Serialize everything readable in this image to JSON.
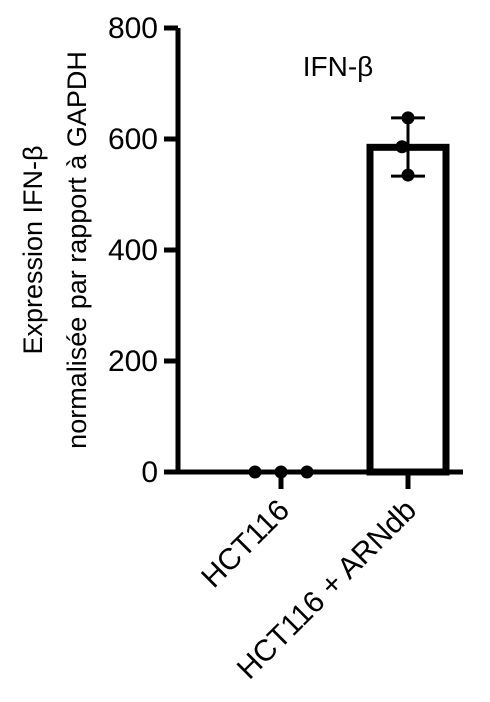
{
  "chart_data": {
    "type": "bar",
    "title": "IFN-β",
    "ylabel_lines": [
      "Expression IFN-β",
      "normalisée par rapport à GAPDH"
    ],
    "xlabel": "",
    "categories": [
      "HCT116",
      "HCT116 + ARNdb"
    ],
    "values": [
      0,
      585
    ],
    "errors": [
      {
        "low": 0,
        "high": 0
      },
      {
        "low": 533,
        "high": 638
      }
    ],
    "points": [
      [
        0,
        0,
        0
      ],
      [
        535,
        586,
        638
      ]
    ],
    "ylim": [
      0,
      800
    ],
    "yticks": [
      0,
      200,
      400,
      600,
      800
    ],
    "grid": false,
    "bar_fill": "#ffffff",
    "bar_stroke": "#000000",
    "point_color": "#000000"
  }
}
